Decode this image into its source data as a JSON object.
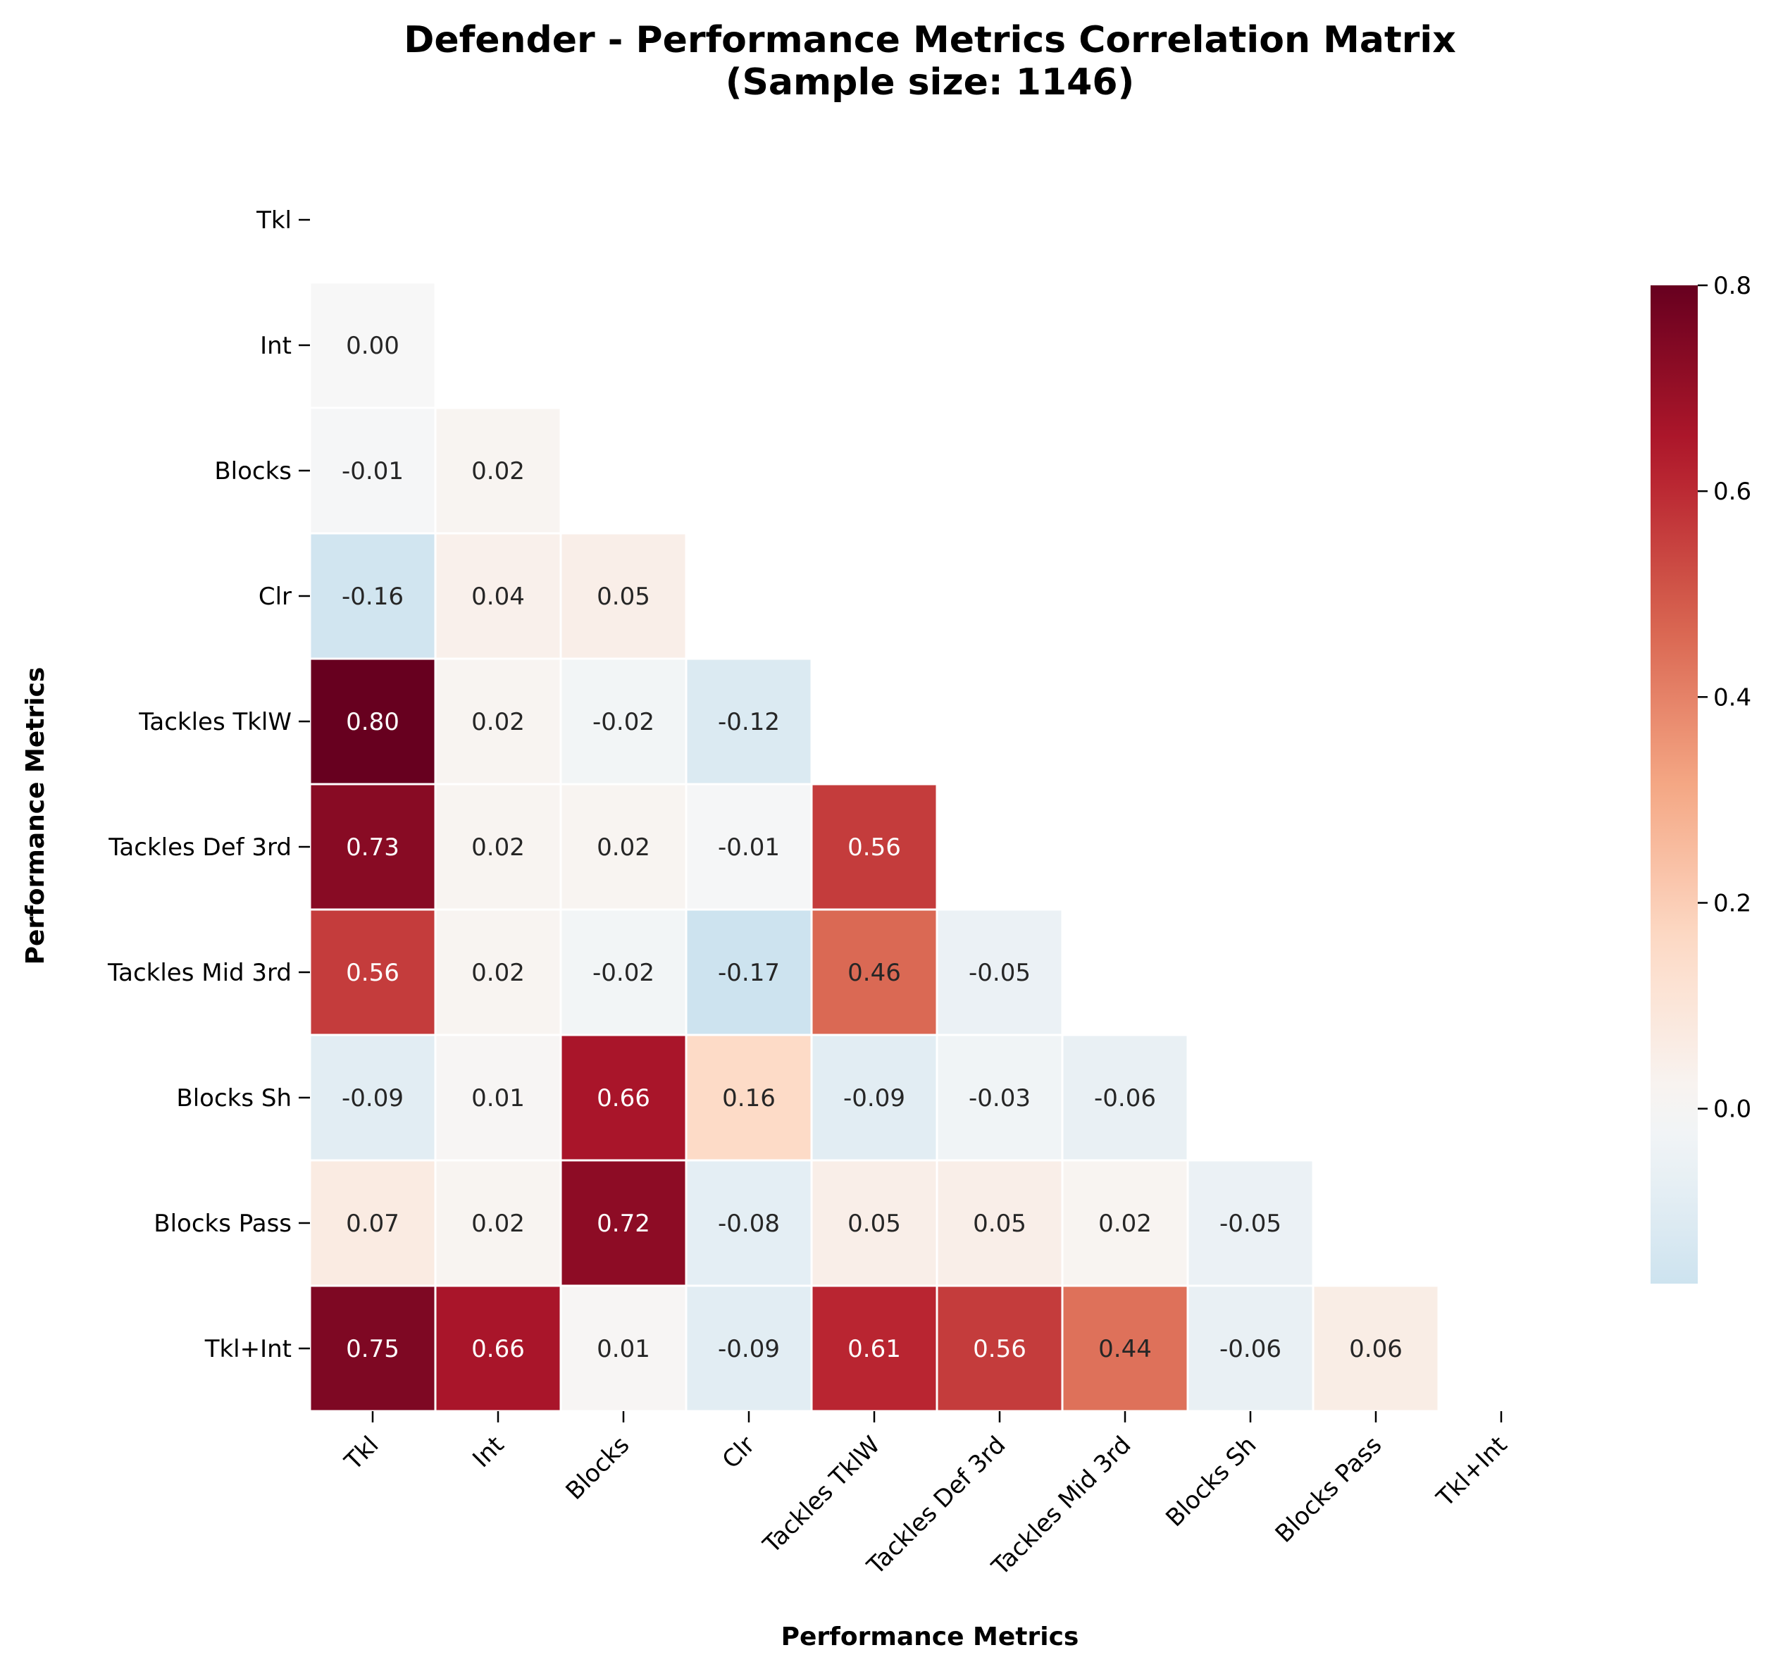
{
  "chart_data": {
    "type": "heatmap",
    "title_line1": "Defender - Performance Metrics Correlation Matrix",
    "title_line2": "(Sample size: 1146)",
    "xlabel": "Performance Metrics",
    "ylabel": "Performance Metrics",
    "categories": [
      "Tkl",
      "Int",
      "Blocks",
      "Clr",
      "Tackles TklW",
      "Tackles Def 3rd",
      "Tackles Mid 3rd",
      "Blocks Sh",
      "Blocks Pass",
      "Tkl+Int"
    ],
    "mask": "upper-triangle-including-diagonal",
    "values": [
      [
        null,
        null,
        null,
        null,
        null,
        null,
        null,
        null,
        null,
        null
      ],
      [
        0.0,
        null,
        null,
        null,
        null,
        null,
        null,
        null,
        null,
        null
      ],
      [
        -0.01,
        0.02,
        null,
        null,
        null,
        null,
        null,
        null,
        null,
        null
      ],
      [
        -0.16,
        0.04,
        0.05,
        null,
        null,
        null,
        null,
        null,
        null,
        null
      ],
      [
        0.8,
        0.02,
        -0.02,
        -0.12,
        null,
        null,
        null,
        null,
        null,
        null
      ],
      [
        0.73,
        0.02,
        0.02,
        -0.01,
        0.56,
        null,
        null,
        null,
        null,
        null
      ],
      [
        0.56,
        0.02,
        -0.02,
        -0.17,
        0.46,
        -0.05,
        null,
        null,
        null,
        null
      ],
      [
        -0.09,
        0.01,
        0.66,
        0.16,
        -0.09,
        -0.03,
        -0.06,
        null,
        null,
        null
      ],
      [
        0.07,
        0.02,
        0.72,
        -0.08,
        0.05,
        0.05,
        0.02,
        -0.05,
        null,
        null
      ],
      [
        0.75,
        0.66,
        0.01,
        -0.09,
        0.61,
        0.56,
        0.44,
        -0.06,
        0.06,
        null
      ]
    ],
    "value_labels": [
      [
        null,
        null,
        null,
        null,
        null,
        null,
        null,
        null,
        null,
        null
      ],
      [
        "0.00",
        null,
        null,
        null,
        null,
        null,
        null,
        null,
        null,
        null
      ],
      [
        "-0.01",
        "0.02",
        null,
        null,
        null,
        null,
        null,
        null,
        null,
        null
      ],
      [
        "-0.16",
        "0.04",
        "0.05",
        null,
        null,
        null,
        null,
        null,
        null,
        null
      ],
      [
        "0.80",
        "0.02",
        "-0.02",
        "-0.12",
        null,
        null,
        null,
        null,
        null,
        null
      ],
      [
        "0.73",
        "0.02",
        "0.02",
        "-0.01",
        "0.56",
        null,
        null,
        null,
        null,
        null
      ],
      [
        "0.56",
        "0.02",
        "-0.02",
        "-0.17",
        "0.46",
        "-0.05",
        null,
        null,
        null,
        null
      ],
      [
        "-0.09",
        "0.01",
        "0.66",
        "0.16",
        "-0.09",
        "-0.03",
        "-0.06",
        null,
        null,
        null
      ],
      [
        "0.07",
        "0.02",
        "0.72",
        "-0.08",
        "0.05",
        "0.05",
        "0.02",
        "-0.05",
        null,
        null
      ],
      [
        "0.75",
        "0.66",
        "0.01",
        "-0.09",
        "0.61",
        "0.56",
        "0.44",
        "-0.06",
        "0.06",
        null
      ]
    ],
    "colormap": "RdBu_r",
    "vmin": -0.8,
    "vmax": 0.8,
    "colorbar_range": [
      -0.17,
      0.8
    ],
    "colorbar_ticks": [
      "0.0",
      "0.2",
      "0.4",
      "0.6",
      "0.8"
    ],
    "colorbar_tick_values": [
      0.0,
      0.2,
      0.4,
      0.6,
      0.8
    ],
    "colors": {
      "negative_max": "#053061",
      "neutral": "#f7f7f7",
      "positive_max": "#67001f"
    }
  }
}
